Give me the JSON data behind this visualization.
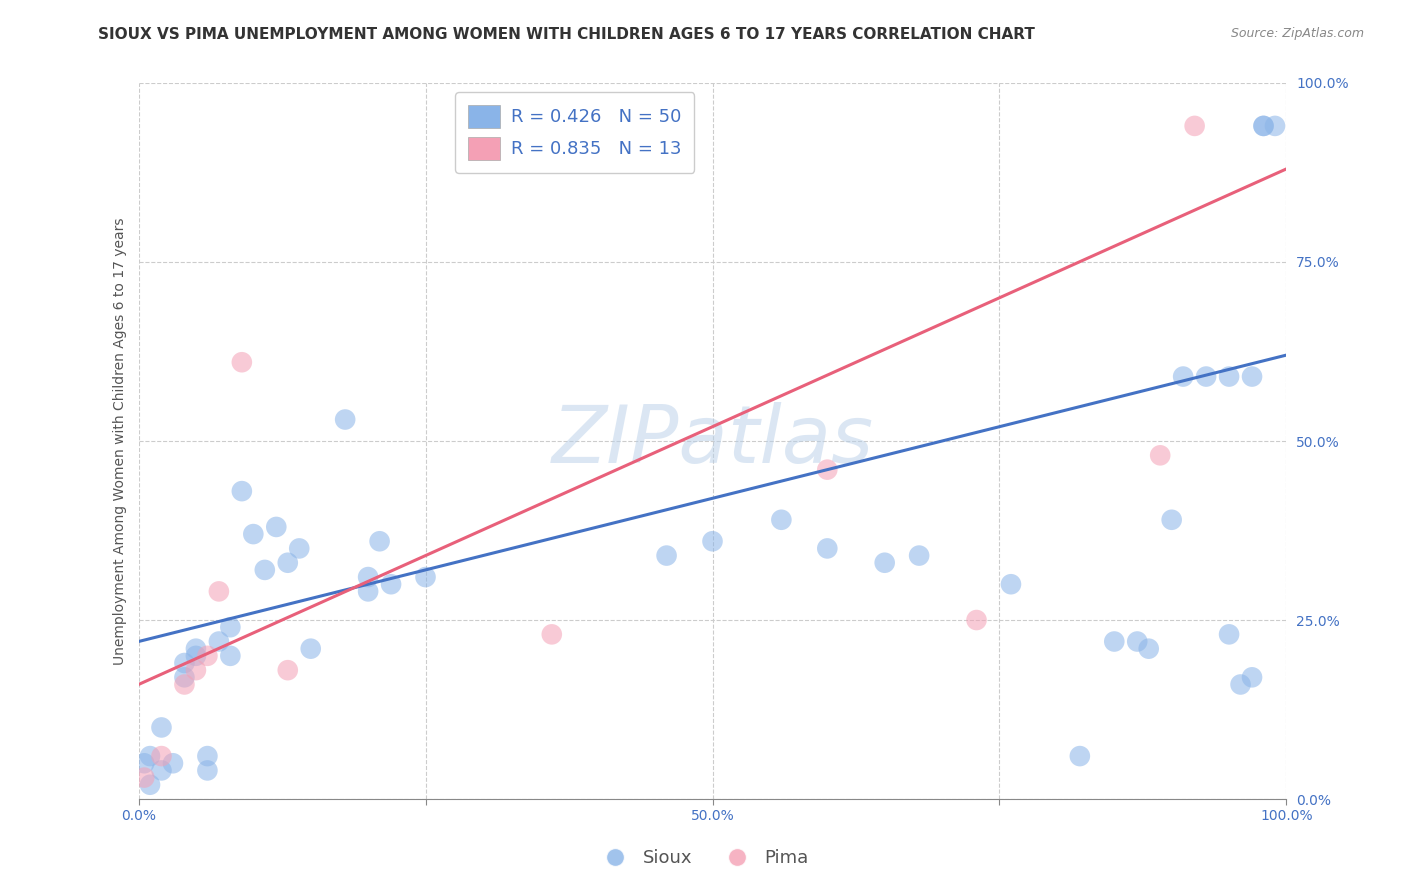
{
  "title": "SIOUX VS PIMA UNEMPLOYMENT AMONG WOMEN WITH CHILDREN AGES 6 TO 17 YEARS CORRELATION CHART",
  "source": "Source: ZipAtlas.com",
  "ylabel": "Unemployment Among Women with Children Ages 6 to 17 years",
  "xlabel": "",
  "xlim": [
    0.0,
    1.0
  ],
  "ylim": [
    0.0,
    1.0
  ],
  "xticks": [
    0.0,
    0.25,
    0.5,
    0.75,
    1.0
  ],
  "yticks": [
    0.0,
    0.25,
    0.5,
    0.75,
    1.0
  ],
  "xticklabels": [
    "0.0%",
    "",
    "50.0%",
    "",
    "100.0%"
  ],
  "yticklabels": [
    "0.0%",
    "25.0%",
    "50.0%",
    "75.0%",
    "100.0%"
  ],
  "background_color": "#ffffff",
  "watermark": "ZIPatlas",
  "sioux_color": "#8ab4e8",
  "pima_color": "#f4a0b5",
  "sioux_line_color": "#4472c4",
  "pima_line_color": "#e8607a",
  "sioux_R": 0.426,
  "sioux_N": 50,
  "pima_R": 0.835,
  "pima_N": 13,
  "sioux_x": [
    0.005,
    0.01,
    0.01,
    0.02,
    0.02,
    0.03,
    0.04,
    0.04,
    0.05,
    0.05,
    0.06,
    0.06,
    0.07,
    0.08,
    0.08,
    0.09,
    0.1,
    0.11,
    0.12,
    0.13,
    0.14,
    0.15,
    0.18,
    0.2,
    0.2,
    0.21,
    0.22,
    0.25,
    0.46,
    0.5,
    0.56,
    0.6,
    0.65,
    0.68,
    0.76,
    0.82,
    0.85,
    0.87,
    0.88,
    0.9,
    0.91,
    0.93,
    0.95,
    0.95,
    0.96,
    0.97,
    0.97,
    0.98,
    0.98,
    0.99
  ],
  "sioux_y": [
    0.05,
    0.02,
    0.06,
    0.04,
    0.1,
    0.05,
    0.17,
    0.19,
    0.2,
    0.21,
    0.04,
    0.06,
    0.22,
    0.2,
    0.24,
    0.43,
    0.37,
    0.32,
    0.38,
    0.33,
    0.35,
    0.21,
    0.53,
    0.29,
    0.31,
    0.36,
    0.3,
    0.31,
    0.34,
    0.36,
    0.39,
    0.35,
    0.33,
    0.34,
    0.3,
    0.06,
    0.22,
    0.22,
    0.21,
    0.39,
    0.59,
    0.59,
    0.23,
    0.59,
    0.16,
    0.59,
    0.17,
    0.94,
    0.94,
    0.94
  ],
  "pima_x": [
    0.005,
    0.02,
    0.04,
    0.05,
    0.06,
    0.07,
    0.09,
    0.13,
    0.36,
    0.6,
    0.73,
    0.89,
    0.92
  ],
  "pima_y": [
    0.03,
    0.06,
    0.16,
    0.18,
    0.2,
    0.29,
    0.61,
    0.18,
    0.23,
    0.46,
    0.25,
    0.48,
    0.94
  ],
  "sioux_line_x": [
    0.0,
    1.0
  ],
  "sioux_line_y": [
    0.22,
    0.62
  ],
  "pima_line_x": [
    0.0,
    1.0
  ],
  "pima_line_y": [
    0.16,
    0.88
  ],
  "grid_color": "#cccccc",
  "grid_style": "--",
  "title_fontsize": 11,
  "label_fontsize": 10,
  "tick_fontsize": 10,
  "legend_fontsize": 13,
  "legend_color": "#4472c4"
}
